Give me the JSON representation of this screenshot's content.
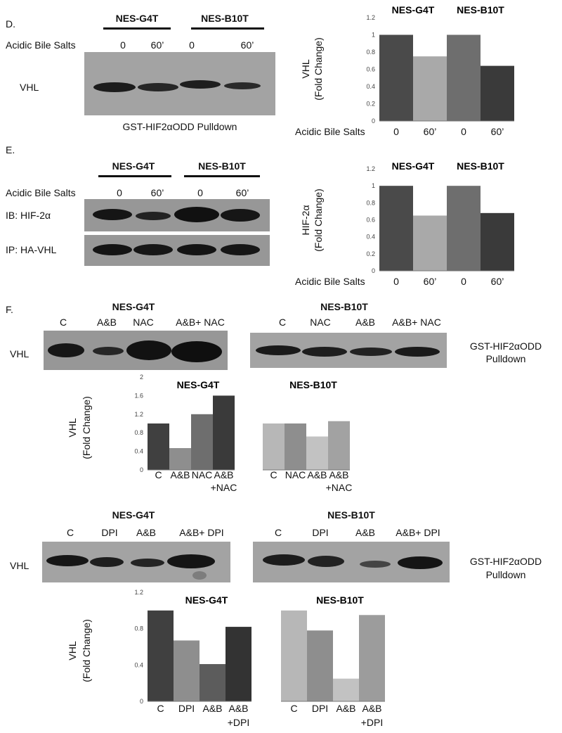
{
  "panelD": {
    "letter": "D.",
    "group1": "NES-G4T",
    "group2": "NES-B10T",
    "rowLabel": "Acidic Bile Salts",
    "lanes": [
      "0",
      "60’",
      "0",
      "60’"
    ],
    "blotLabel": "VHL",
    "caption": "GST-HIF2αODD  Pulldown"
  },
  "panelE": {
    "letter": "E.",
    "group1": "NES-G4T",
    "group2": "NES-B10T",
    "rowLabel": "Acidic Bile Salts",
    "lanes": [
      "0",
      "60’",
      "0",
      "60’"
    ],
    "blot1Label": "IB: HIF-2α",
    "blot2Label": "IP: HA-VHL"
  },
  "panelF": {
    "letter": "F.",
    "group1": "NES-G4T",
    "group2": "NES-B10T",
    "lanes1": [
      "C",
      "A&B",
      "NAC",
      "A&B+ NAC"
    ],
    "lanes2": [
      "C",
      "NAC",
      "A&B",
      "A&B+ NAC"
    ],
    "blotLabel": "VHL",
    "caption_line1": "GST-HIF2αODD",
    "caption_line2": "Pulldown"
  },
  "panelG": {
    "group1": "NES-G4T",
    "group2": "NES-B10T",
    "lanes1": [
      "C",
      "DPI",
      "A&B",
      "A&B+ DPI"
    ],
    "lanes2": [
      "C",
      "DPI",
      "A&B",
      "A&B+ DPI"
    ],
    "blotLabel": "VHL",
    "caption_line1": "GST-HIF2αODD",
    "caption_line2": "Pulldown"
  },
  "chart_data": [
    {
      "type": "bar",
      "panel": "D",
      "group_labels": [
        "NES-G4T",
        "NES-B10T"
      ],
      "xlabel": "Acidic Bile Salts",
      "categories": [
        "0",
        "60’",
        "0",
        "60’"
      ],
      "values": [
        1.0,
        0.75,
        1.0,
        0.64
      ],
      "colors": [
        "#4a4a4a",
        "#a9a9a9",
        "#6e6e6e",
        "#3a3a3a"
      ],
      "ylabel_line1": "VHL",
      "ylabel_line2": "(Fold Change)",
      "ylim": [
        0,
        1.2
      ],
      "yticks": [
        0,
        0.2,
        0.4,
        0.6,
        0.8,
        1,
        1.2
      ],
      "ytick_labels": [
        "0",
        "0.2",
        "0.4",
        "0.6",
        "0.8",
        "1",
        "1.2"
      ]
    },
    {
      "type": "bar",
      "panel": "E",
      "group_labels": [
        "NES-G4T",
        "NES-B10T"
      ],
      "xlabel": "Acidic Bile Salts",
      "categories": [
        "0",
        "60’",
        "0",
        "60’"
      ],
      "values": [
        1.0,
        0.65,
        1.0,
        0.68
      ],
      "colors": [
        "#4a4a4a",
        "#a9a9a9",
        "#6e6e6e",
        "#3a3a3a"
      ],
      "ylabel_line1": "HIF-2α",
      "ylabel_line2": "(Fold Change)",
      "ylim": [
        0,
        1.2
      ],
      "yticks": [
        0,
        0.2,
        0.4,
        0.6,
        0.8,
        1,
        1.2
      ],
      "ytick_labels": [
        "0",
        "0.2",
        "0.4",
        "0.6",
        "0.8",
        "1",
        "1.2"
      ]
    },
    {
      "type": "bar",
      "panel": "F",
      "group_labels": [
        "NES-G4T",
        "NES-B10T"
      ],
      "categories": [
        "C",
        "A&B",
        "NAC",
        "A&B +NAC",
        "C",
        "NAC",
        "A&B",
        "A&B +NAC"
      ],
      "values": [
        1.0,
        0.47,
        1.2,
        1.6,
        1.0,
        1.0,
        0.72,
        1.05
      ],
      "colors": [
        "#404040",
        "#8e8e8e",
        "#6e6e6e",
        "#3a3a3a",
        "#b7b7b7",
        "#8e8e8e",
        "#c2c2c2",
        "#a2a2a2"
      ],
      "ylabel_line1": "VHL",
      "ylabel_line2": "(Fold Change)",
      "ylim": [
        0,
        2
      ],
      "yticks": [
        0,
        0.4,
        0.8,
        1.2,
        1.6,
        2
      ],
      "ytick_labels": [
        "0",
        "0.4",
        "0.8",
        "1.2",
        "1.6",
        "2"
      ]
    },
    {
      "type": "bar",
      "panel": "G",
      "group_labels": [
        "NES-G4T",
        "NES-B10T"
      ],
      "categories": [
        "C",
        "DPI",
        "A&B",
        "A&B +DPI",
        "C",
        "DPI",
        "A&B",
        "A&B +DPI"
      ],
      "values": [
        1.0,
        0.67,
        0.41,
        0.82,
        1.0,
        0.78,
        0.25,
        0.95
      ],
      "colors": [
        "#404040",
        "#8e8e8e",
        "#5c5c5c",
        "#333333",
        "#b7b7b7",
        "#8e8e8e",
        "#c2c2c2",
        "#9c9c9c"
      ],
      "ylabel_line1": "VHL",
      "ylabel_line2": "(Fold Change)",
      "ylim": [
        0,
        1.2
      ],
      "yticks": [
        0,
        0.4,
        0.8,
        1.2
      ],
      "ytick_labels": [
        "0",
        "0.4",
        "0.8",
        "1.2"
      ]
    }
  ]
}
